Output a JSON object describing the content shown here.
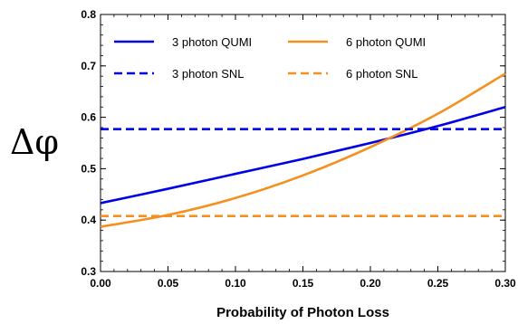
{
  "chart_data": {
    "type": "line",
    "xlabel": "Probability of Photon Loss",
    "ylabel": "Δφ",
    "xlim": [
      0.0,
      0.3
    ],
    "ylim": [
      0.3,
      0.8
    ],
    "x_ticks": [
      0.0,
      0.05,
      0.1,
      0.15,
      0.2,
      0.25,
      0.3
    ],
    "x_tick_labels": [
      "0.00",
      "0.05",
      "0.10",
      "0.15",
      "0.20",
      "0.25",
      "0.30"
    ],
    "y_ticks": [
      0.3,
      0.4,
      0.5,
      0.6,
      0.7,
      0.8
    ],
    "y_tick_labels": [
      "0.3",
      "0.4",
      "0.5",
      "0.6",
      "0.7",
      "0.8"
    ],
    "grid": false,
    "legend_placement": "top-left",
    "series": [
      {
        "name": "3 photon QUMI",
        "color": "#0000e6",
        "dash": "solid",
        "x": [
          0.0,
          0.05,
          0.1,
          0.15,
          0.2,
          0.25,
          0.3
        ],
        "y": [
          0.433,
          0.461,
          0.49,
          0.519,
          0.55,
          0.583,
          0.62
        ]
      },
      {
        "name": "6 photon QUMI",
        "color": "#f5901e",
        "dash": "solid",
        "x": [
          0.0,
          0.05,
          0.1,
          0.15,
          0.2,
          0.25,
          0.3
        ],
        "y": [
          0.387,
          0.41,
          0.443,
          0.487,
          0.542,
          0.607,
          0.685
        ]
      },
      {
        "name": "3 photon SNL",
        "color": "#0000e6",
        "dash": "dashed",
        "x": [
          0.0,
          0.3
        ],
        "y": [
          0.577,
          0.577
        ]
      },
      {
        "name": "6 photon SNL",
        "color": "#f5901e",
        "dash": "dashed",
        "x": [
          0.0,
          0.3
        ],
        "y": [
          0.408,
          0.408
        ]
      }
    ]
  }
}
